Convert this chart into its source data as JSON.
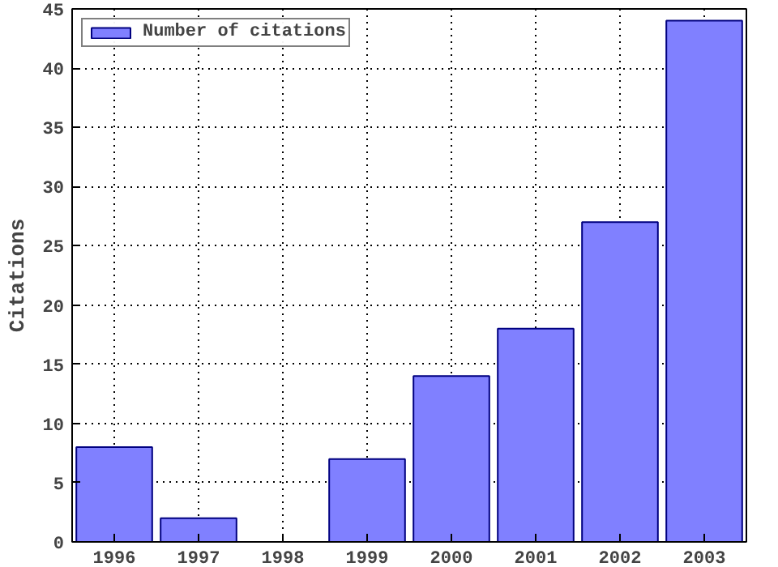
{
  "chart_data": {
    "type": "bar",
    "ylabel": "Citations",
    "x": [
      1996,
      1997,
      1999,
      2000,
      2001,
      2002,
      2003
    ],
    "series": [
      {
        "name": "Number of citations",
        "color": "#8080ff",
        "values": [
          8,
          2,
          7,
          14,
          18,
          27,
          44
        ]
      }
    ],
    "xlim": [
      1995.5,
      2003.5
    ],
    "xticks": [
      1996,
      1997,
      1998,
      1999,
      2000,
      2001,
      2002,
      2003
    ],
    "ylim": [
      0,
      45
    ],
    "yticks": [
      0,
      5,
      10,
      15,
      20,
      25,
      30,
      35,
      40,
      45
    ],
    "grid": true,
    "legend": "top left"
  }
}
